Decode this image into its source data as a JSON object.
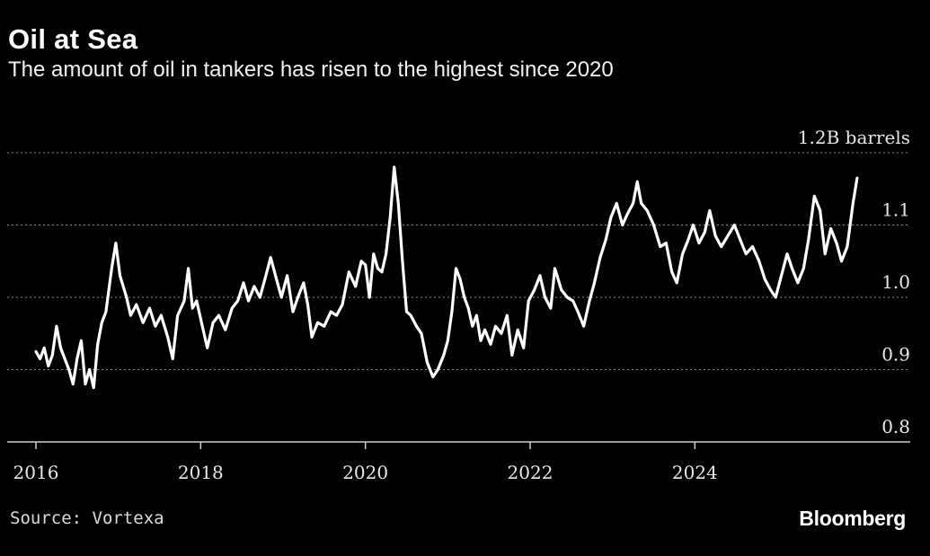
{
  "header": {
    "title": "Oil at Sea",
    "subtitle": "The amount of oil in tankers has risen to the highest since 2020"
  },
  "footer": {
    "source": "Source: Vortexa",
    "brand": "Bloomberg"
  },
  "colors": {
    "background": "#000000",
    "line": "#ffffff",
    "grid": "#8a8a8a"
  },
  "chart_data": {
    "type": "line",
    "title": "Oil at Sea",
    "subtitle": "The amount of oil in tankers has risen to the highest since 2020",
    "unit_label": "1.2B barrels",
    "xlim": [
      2016,
      2026.2
    ],
    "ylim": [
      0.8,
      1.2
    ],
    "x_ticks": [
      2016,
      2018,
      2020,
      2022,
      2024
    ],
    "x_tick_labels": [
      "2016",
      "2018",
      "2020",
      "2022",
      "2024"
    ],
    "y_ticks": [
      0.8,
      0.9,
      1.0,
      1.1,
      1.2
    ],
    "y_tick_labels": [
      "0.8",
      "0.9",
      "1.0",
      "1.1",
      "1.2B barrels"
    ],
    "grid": "horizontal dotted",
    "series": [
      {
        "values": [
          [
            2016.0,
            0.925
          ],
          [
            2016.05,
            0.915
          ],
          [
            2016.1,
            0.93
          ],
          [
            2016.15,
            0.905
          ],
          [
            2016.2,
            0.92
          ],
          [
            2016.25,
            0.96
          ],
          [
            2016.3,
            0.93
          ],
          [
            2016.35,
            0.915
          ],
          [
            2016.4,
            0.9
          ],
          [
            2016.45,
            0.88
          ],
          [
            2016.5,
            0.915
          ],
          [
            2016.55,
            0.94
          ],
          [
            2016.6,
            0.88
          ],
          [
            2016.65,
            0.9
          ],
          [
            2016.7,
            0.875
          ],
          [
            2016.75,
            0.935
          ],
          [
            2016.8,
            0.965
          ],
          [
            2016.85,
            0.98
          ],
          [
            2016.92,
            1.04
          ],
          [
            2016.97,
            1.075
          ],
          [
            2017.02,
            1.03
          ],
          [
            2017.1,
            1.0
          ],
          [
            2017.15,
            0.975
          ],
          [
            2017.22,
            0.99
          ],
          [
            2017.3,
            0.965
          ],
          [
            2017.38,
            0.985
          ],
          [
            2017.45,
            0.96
          ],
          [
            2017.52,
            0.975
          ],
          [
            2017.6,
            0.945
          ],
          [
            2017.66,
            0.915
          ],
          [
            2017.72,
            0.975
          ],
          [
            2017.8,
            0.995
          ],
          [
            2017.85,
            1.04
          ],
          [
            2017.9,
            0.985
          ],
          [
            2017.95,
            0.995
          ],
          [
            2018.02,
            0.96
          ],
          [
            2018.08,
            0.93
          ],
          [
            2018.15,
            0.965
          ],
          [
            2018.22,
            0.975
          ],
          [
            2018.3,
            0.955
          ],
          [
            2018.38,
            0.985
          ],
          [
            2018.45,
            0.995
          ],
          [
            2018.52,
            1.02
          ],
          [
            2018.58,
            0.995
          ],
          [
            2018.65,
            1.015
          ],
          [
            2018.72,
            1.0
          ],
          [
            2018.78,
            1.025
          ],
          [
            2018.85,
            1.055
          ],
          [
            2018.92,
            1.025
          ],
          [
            2018.98,
            1.0
          ],
          [
            2019.05,
            1.03
          ],
          [
            2019.12,
            0.98
          ],
          [
            2019.18,
            1.0
          ],
          [
            2019.25,
            1.02
          ],
          [
            2019.3,
            0.99
          ],
          [
            2019.35,
            0.945
          ],
          [
            2019.42,
            0.965
          ],
          [
            2019.5,
            0.96
          ],
          [
            2019.58,
            0.98
          ],
          [
            2019.65,
            0.975
          ],
          [
            2019.72,
            0.99
          ],
          [
            2019.8,
            1.035
          ],
          [
            2019.88,
            1.015
          ],
          [
            2019.95,
            1.05
          ],
          [
            2020.0,
            1.045
          ],
          [
            2020.05,
            1.0
          ],
          [
            2020.1,
            1.06
          ],
          [
            2020.15,
            1.04
          ],
          [
            2020.2,
            1.035
          ],
          [
            2020.25,
            1.06
          ],
          [
            2020.3,
            1.11
          ],
          [
            2020.35,
            1.18
          ],
          [
            2020.4,
            1.13
          ],
          [
            2020.45,
            1.05
          ],
          [
            2020.5,
            0.98
          ],
          [
            2020.55,
            0.975
          ],
          [
            2020.62,
            0.96
          ],
          [
            2020.68,
            0.95
          ],
          [
            2020.75,
            0.91
          ],
          [
            2020.82,
            0.89
          ],
          [
            2020.88,
            0.9
          ],
          [
            2020.95,
            0.92
          ],
          [
            2021.0,
            0.94
          ],
          [
            2021.05,
            0.98
          ],
          [
            2021.1,
            1.04
          ],
          [
            2021.15,
            1.025
          ],
          [
            2021.2,
            1.0
          ],
          [
            2021.25,
            0.985
          ],
          [
            2021.3,
            0.96
          ],
          [
            2021.35,
            0.975
          ],
          [
            2021.4,
            0.94
          ],
          [
            2021.45,
            0.955
          ],
          [
            2021.52,
            0.935
          ],
          [
            2021.58,
            0.96
          ],
          [
            2021.65,
            0.95
          ],
          [
            2021.72,
            0.975
          ],
          [
            2021.78,
            0.92
          ],
          [
            2021.85,
            0.955
          ],
          [
            2021.92,
            0.93
          ],
          [
            2021.98,
            0.995
          ],
          [
            2022.05,
            1.01
          ],
          [
            2022.12,
            1.03
          ],
          [
            2022.18,
            1.0
          ],
          [
            2022.25,
            0.985
          ],
          [
            2022.3,
            1.04
          ],
          [
            2022.38,
            1.01
          ],
          [
            2022.45,
            1.0
          ],
          [
            2022.52,
            0.995
          ],
          [
            2022.58,
            0.98
          ],
          [
            2022.65,
            0.96
          ],
          [
            2022.72,
            0.995
          ],
          [
            2022.78,
            1.02
          ],
          [
            2022.85,
            1.055
          ],
          [
            2022.92,
            1.08
          ],
          [
            2022.98,
            1.11
          ],
          [
            2023.05,
            1.13
          ],
          [
            2023.12,
            1.1
          ],
          [
            2023.18,
            1.115
          ],
          [
            2023.25,
            1.13
          ],
          [
            2023.3,
            1.16
          ],
          [
            2023.35,
            1.13
          ],
          [
            2023.42,
            1.12
          ],
          [
            2023.5,
            1.1
          ],
          [
            2023.58,
            1.07
          ],
          [
            2023.65,
            1.075
          ],
          [
            2023.72,
            1.035
          ],
          [
            2023.78,
            1.02
          ],
          [
            2023.85,
            1.06
          ],
          [
            2023.92,
            1.08
          ],
          [
            2023.98,
            1.1
          ],
          [
            2024.05,
            1.075
          ],
          [
            2024.12,
            1.09
          ],
          [
            2024.18,
            1.12
          ],
          [
            2024.25,
            1.085
          ],
          [
            2024.32,
            1.07
          ],
          [
            2024.4,
            1.085
          ],
          [
            2024.48,
            1.1
          ],
          [
            2024.55,
            1.08
          ],
          [
            2024.62,
            1.06
          ],
          [
            2024.7,
            1.07
          ],
          [
            2024.78,
            1.05
          ],
          [
            2024.85,
            1.025
          ],
          [
            2024.92,
            1.01
          ],
          [
            2024.98,
            1.0
          ],
          [
            2025.05,
            1.03
          ],
          [
            2025.12,
            1.06
          ],
          [
            2025.18,
            1.04
          ],
          [
            2025.25,
            1.02
          ],
          [
            2025.32,
            1.04
          ],
          [
            2025.38,
            1.08
          ],
          [
            2025.45,
            1.14
          ],
          [
            2025.52,
            1.12
          ],
          [
            2025.58,
            1.06
          ],
          [
            2025.65,
            1.095
          ],
          [
            2025.72,
            1.075
          ],
          [
            2025.78,
            1.05
          ],
          [
            2025.85,
            1.07
          ],
          [
            2025.92,
            1.13
          ],
          [
            2025.97,
            1.165
          ]
        ]
      }
    ]
  }
}
